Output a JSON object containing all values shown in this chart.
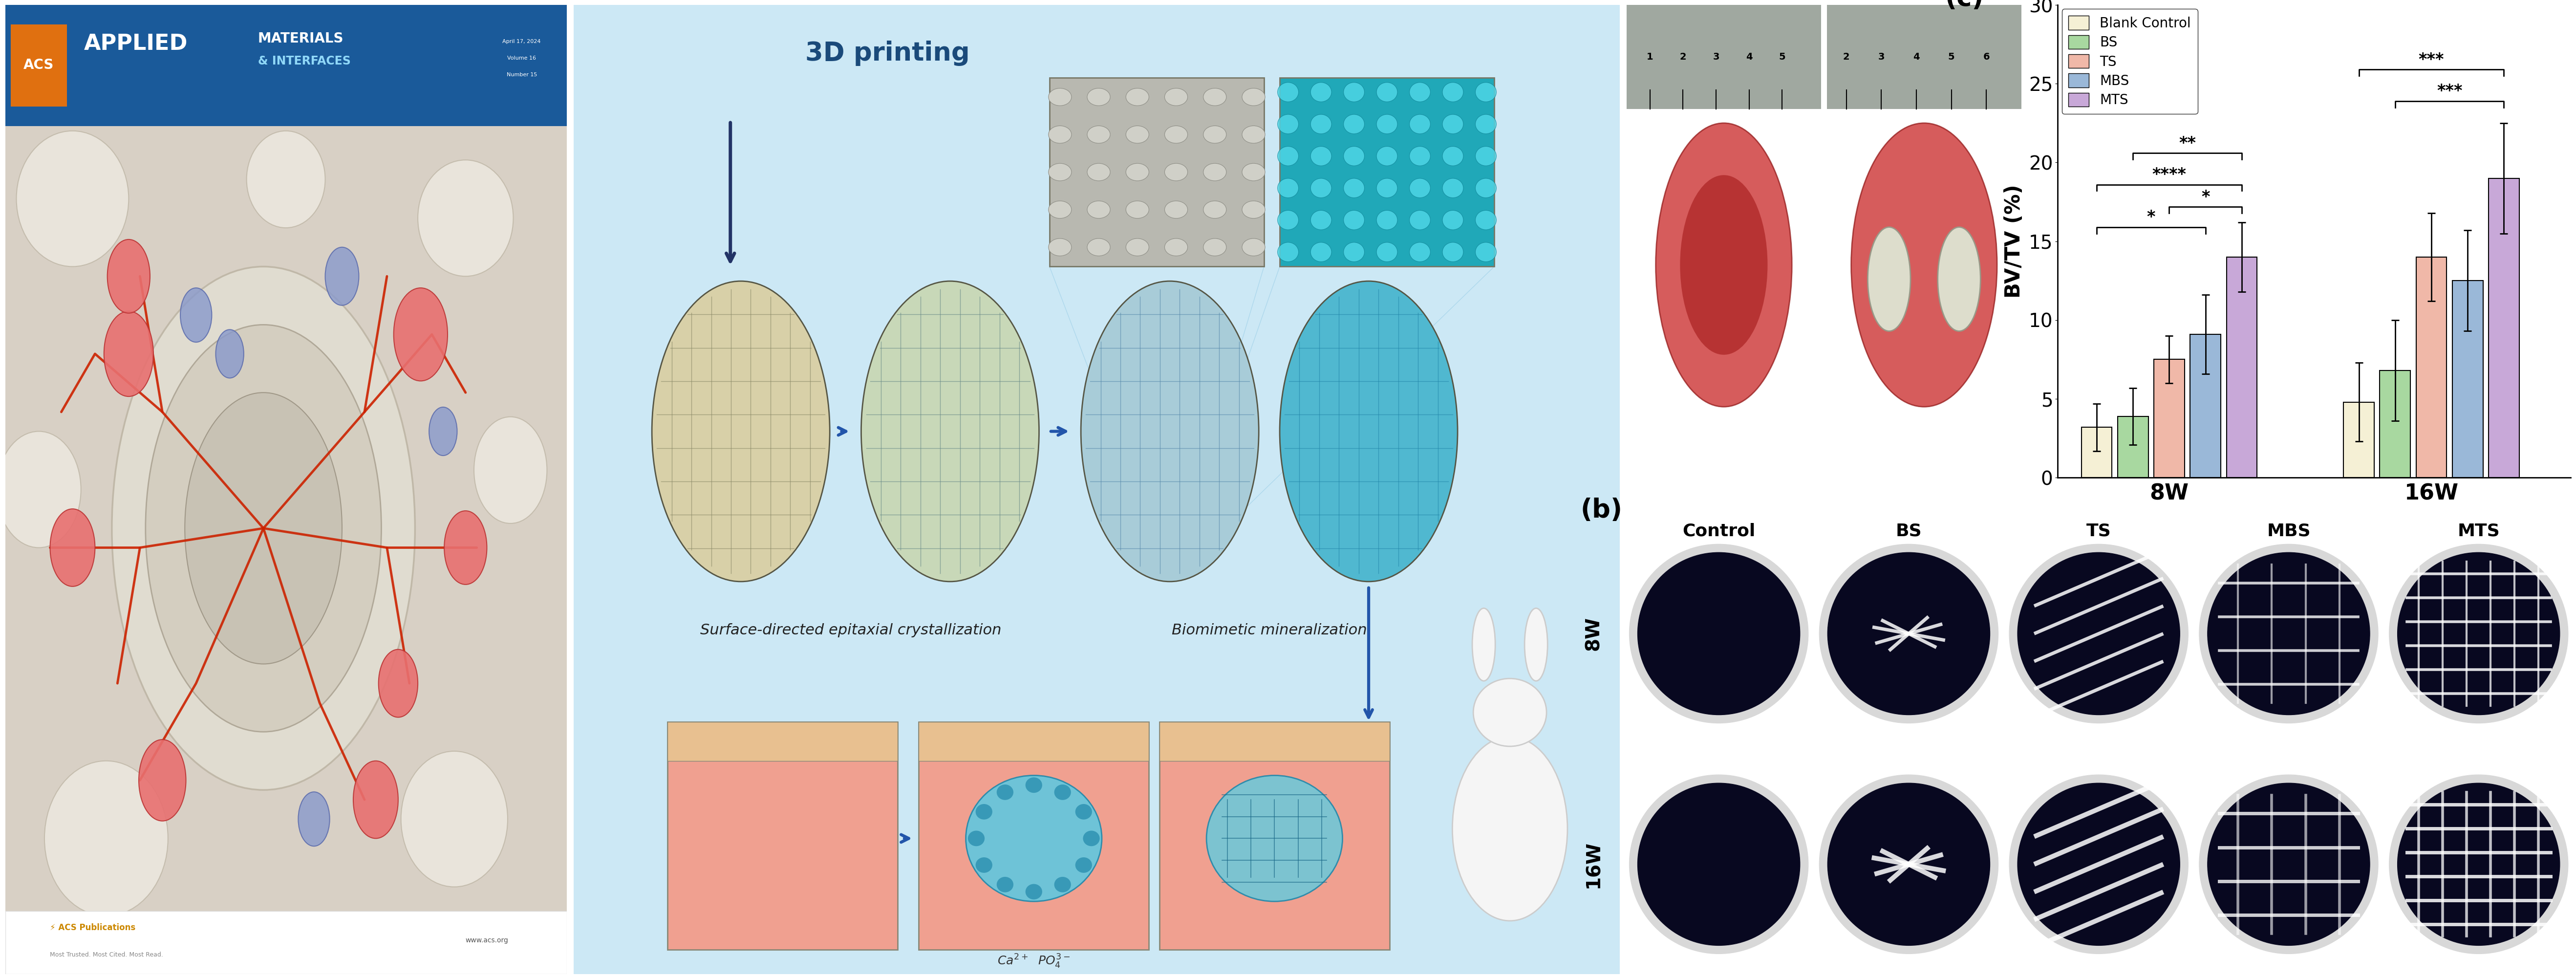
{
  "bar_chart": {
    "categories": [
      "Blank Control",
      "BS",
      "TS",
      "MBS",
      "MTS"
    ],
    "colors": [
      "#f5f0d5",
      "#a8d8a0",
      "#f0b8a8",
      "#9ab8d8",
      "#c8a8d8"
    ],
    "values_8W": [
      3.2,
      3.9,
      7.5,
      9.1,
      14.0
    ],
    "errors_8W": [
      1.5,
      1.8,
      1.5,
      2.5,
      2.2
    ],
    "values_16W": [
      4.8,
      6.8,
      14.0,
      12.5,
      19.0
    ],
    "errors_16W": [
      2.5,
      3.2,
      2.8,
      3.2,
      3.5
    ],
    "ylabel": "BV/TV (%)",
    "yticks": [
      0,
      5,
      10,
      15,
      20,
      25,
      30
    ]
  },
  "panel_b_col_labels": [
    "Control",
    "BS",
    "TS",
    "MBS",
    "MTS"
  ],
  "panel_b_row_labels": [
    "8W",
    "16W"
  ],
  "fig_width": 52.72,
  "fig_height": 20.03
}
